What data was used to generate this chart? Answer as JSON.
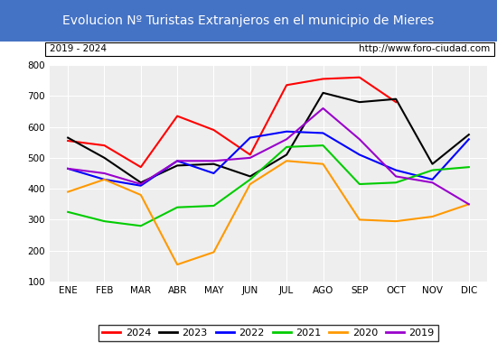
{
  "title": "Evolucion Nº Turistas Extranjeros en el municipio de Mieres",
  "subtitle_left": "2019 - 2024",
  "subtitle_right": "http://www.foro-ciudad.com",
  "months": [
    "ENE",
    "FEB",
    "MAR",
    "ABR",
    "MAY",
    "JUN",
    "JUL",
    "AGO",
    "SEP",
    "OCT",
    "NOV",
    "DIC"
  ],
  "ylim": [
    100,
    800
  ],
  "yticks": [
    100,
    200,
    300,
    400,
    500,
    600,
    700,
    800
  ],
  "series": {
    "2024": {
      "color": "#ff0000",
      "values": [
        555,
        540,
        470,
        635,
        590,
        510,
        735,
        755,
        760,
        680,
        null,
        null
      ]
    },
    "2023": {
      "color": "#000000",
      "values": [
        565,
        500,
        420,
        475,
        480,
        440,
        510,
        710,
        680,
        690,
        480,
        575
      ]
    },
    "2022": {
      "color": "#0000ff",
      "values": [
        465,
        430,
        410,
        490,
        450,
        565,
        585,
        580,
        510,
        460,
        430,
        560
      ]
    },
    "2021": {
      "color": "#00cc00",
      "values": [
        325,
        295,
        280,
        340,
        345,
        430,
        535,
        540,
        415,
        420,
        460,
        470
      ]
    },
    "2020": {
      "color": "#ff9900",
      "values": [
        390,
        430,
        380,
        155,
        195,
        415,
        490,
        480,
        300,
        295,
        310,
        350
      ]
    },
    "2019": {
      "color": "#9900cc",
      "values": [
        465,
        450,
        415,
        490,
        490,
        500,
        560,
        660,
        560,
        440,
        420,
        350
      ]
    }
  },
  "legend_order": [
    "2024",
    "2023",
    "2022",
    "2021",
    "2020",
    "2019"
  ],
  "title_bg": "#4472c4",
  "title_color": "#ffffff",
  "plot_bg": "#eeeeee",
  "grid_color": "#ffffff",
  "title_fontsize": 10,
  "subtitle_fontsize": 7.5,
  "tick_fontsize": 7.5,
  "legend_fontsize": 8
}
